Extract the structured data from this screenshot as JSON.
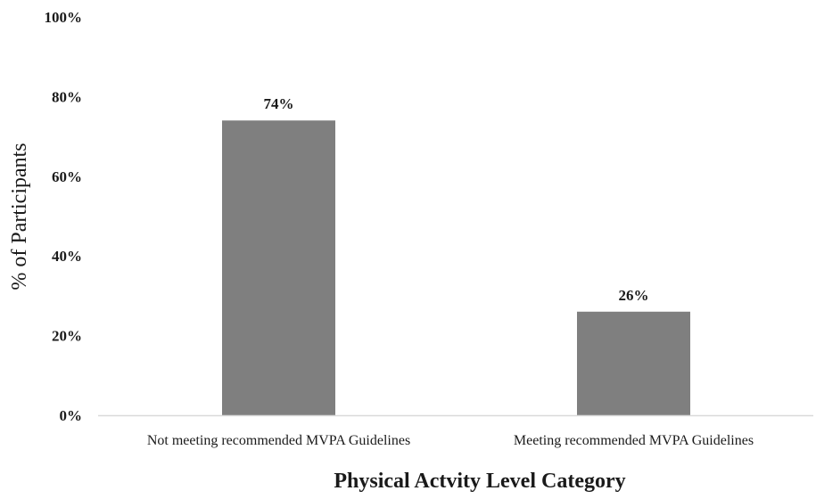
{
  "chart_data": {
    "type": "bar",
    "categories": [
      "Not meeting recommended MVPA Guidelines",
      "Meeting recommended MVPA Guidelines"
    ],
    "values": [
      74,
      26
    ],
    "data_labels": [
      "74%",
      "26%"
    ],
    "title": "",
    "xlabel": "Physical Actvity Level Category",
    "ylabel": "% of Participants",
    "ylim": [
      0,
      100
    ],
    "yticks": [
      0,
      20,
      40,
      60,
      80,
      100
    ],
    "ytick_labels": [
      "0%",
      "20%",
      "40%",
      "60%",
      "80%",
      "100%"
    ],
    "grid": false,
    "legend": "none",
    "bar_color": "#7f7f7f",
    "axis_color": "#d9d9d9"
  }
}
